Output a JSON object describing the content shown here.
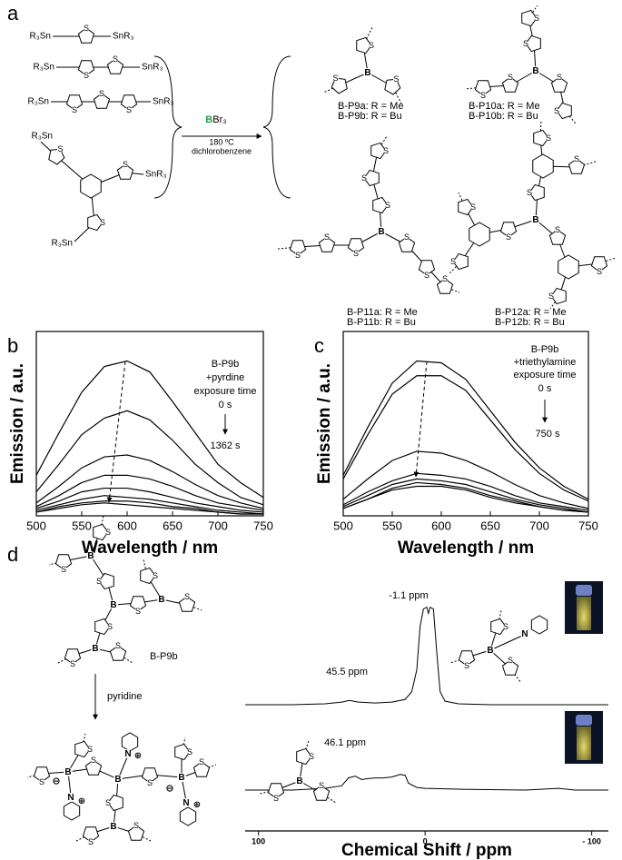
{
  "panel_labels": [
    "a",
    "b",
    "c",
    "d"
  ],
  "atoms": {
    "S": "S",
    "B": "B",
    "N": "N",
    "minus": "⊖",
    "plus": "⊕"
  },
  "scheme_a": {
    "reagent_labels": [
      "R₃Sn",
      "SnR₃",
      "R₃Sn",
      "SnR₃",
      "R₃Sn",
      "SnR₃",
      "R₃Sn",
      "SnR₃",
      "R₃Sn"
    ],
    "reagent": {
      "atom": "B",
      "rest": "Br₃"
    },
    "conditions": [
      "180 ºC",
      "dichlorobenzene"
    ],
    "products": [
      {
        "a": "B-P9a: R = Me",
        "b": "B-P9b: R = Bu"
      },
      {
        "a": "B-P10a: R = Me",
        "b": "B-P10b: R = Bu"
      },
      {
        "a": "B-P11a: R = Me",
        "b": "B-P11b: R = Bu"
      },
      {
        "a": "B-P12a: R = Me",
        "b": "B-P12b: R = Bu"
      }
    ]
  },
  "chart_data": [
    {
      "type": "line",
      "xlabel": "Wavelength / nm",
      "ylabel": "Emission / a.u.",
      "x": [
        500,
        525,
        550,
        575,
        600,
        625,
        650,
        675,
        700,
        725,
        750
      ],
      "xlim": [
        500,
        750
      ],
      "xticks": [
        500,
        550,
        600,
        650,
        700,
        750
      ],
      "ylim": [
        0,
        100
      ],
      "annotations": [
        "B-P9b",
        "+pyrdine",
        "exposure time",
        "0 s",
        "1362 s"
      ],
      "series": [
        {
          "color": "#000000",
          "values": [
            22,
            45,
            67,
            81,
            84,
            78,
            62,
            45,
            28,
            18,
            10
          ]
        },
        {
          "color": "#000000",
          "values": [
            13,
            28,
            44,
            53,
            57,
            52,
            41,
            28,
            18,
            10,
            6
          ]
        },
        {
          "color": "#000000",
          "values": [
            7,
            16,
            26,
            32,
            33,
            30,
            24,
            17,
            11,
            7,
            4
          ]
        },
        {
          "color": "#000000",
          "values": [
            5,
            11,
            18,
            22,
            22,
            20,
            16,
            11,
            7,
            5,
            3
          ]
        },
        {
          "color": "#000000",
          "values": [
            4,
            8,
            13,
            15,
            15,
            13,
            10,
            7,
            5,
            3,
            2
          ]
        },
        {
          "color": "#000000",
          "values": [
            3,
            6,
            9,
            11,
            10,
            9,
            7,
            5,
            3,
            2,
            1
          ]
        },
        {
          "color": "#000000",
          "values": [
            2,
            5,
            7,
            8,
            8,
            7,
            5,
            4,
            2,
            1,
            1
          ]
        },
        {
          "color": "#000000",
          "values": [
            2,
            4,
            6,
            7,
            6,
            5,
            4,
            3,
            2,
            1,
            1
          ]
        }
      ]
    },
    {
      "type": "line",
      "xlabel": "Wavelength / nm",
      "ylabel": "Emission / a.u.",
      "x": [
        500,
        525,
        550,
        575,
        600,
        625,
        650,
        675,
        700,
        725,
        750
      ],
      "xlim": [
        500,
        750
      ],
      "xticks": [
        500,
        550,
        600,
        650,
        700,
        750
      ],
      "ylim": [
        0,
        100
      ],
      "annotations": [
        "B-P9b",
        "+triethylamine",
        "exposure time",
        "0 s",
        "750 s"
      ],
      "series": [
        {
          "color": "#000000",
          "values": [
            22,
            48,
            72,
            84,
            83,
            74,
            57,
            40,
            26,
            16,
            9
          ]
        },
        {
          "color": "#000000",
          "values": [
            20,
            44,
            66,
            76,
            76,
            68,
            52,
            36,
            23,
            14,
            8
          ]
        },
        {
          "color": "#000000",
          "values": [
            9,
            20,
            30,
            35,
            34,
            30,
            24,
            17,
            11,
            7,
            4
          ]
        },
        {
          "color": "#000000",
          "values": [
            6,
            13,
            19,
            23,
            22,
            20,
            16,
            11,
            7,
            5,
            3
          ]
        },
        {
          "color": "#000000",
          "values": [
            5,
            11,
            17,
            20,
            19,
            17,
            13,
            9,
            6,
            4,
            2
          ]
        },
        {
          "color": "#000000",
          "values": [
            4,
            9,
            15,
            18,
            17,
            15,
            11,
            8,
            5,
            3,
            2
          ]
        },
        {
          "color": "#000000",
          "values": [
            4,
            9,
            14,
            16,
            16,
            14,
            10,
            7,
            5,
            3,
            2
          ]
        }
      ]
    },
    {
      "type": "nmr",
      "xlabel": "Chemical Shift / ppm",
      "xlim": [
        108,
        -110
      ],
      "xticks": [
        100,
        0,
        {
          "value": -100,
          "label": "- 100"
        }
      ],
      "ylim": [
        0,
        120
      ],
      "annotations": [
        "-1.1 ppm",
        "45.5 ppm",
        "46.1 ppm"
      ],
      "series": [
        {
          "color": "#000000",
          "x": [
            108,
            80,
            60,
            50,
            45.5,
            40,
            30,
            20,
            12,
            8,
            5,
            3,
            1,
            -1,
            -2,
            -3,
            -5,
            -7,
            -9,
            -12,
            -20,
            -40,
            -70,
            -110
          ],
          "values": [
            0,
            0,
            1,
            3,
            5,
            3,
            2,
            3,
            6,
            15,
            40,
            90,
            110,
            112,
            105,
            112,
            110,
            60,
            15,
            4,
            1,
            0,
            0,
            0
          ]
        },
        {
          "color": "#000000",
          "x": [
            108,
            80,
            60,
            50,
            46,
            42,
            38,
            35,
            30,
            25,
            20,
            15,
            12,
            10,
            5,
            0,
            -20,
            -60,
            -80,
            -90,
            -110
          ],
          "values": [
            0,
            0,
            2,
            5,
            14,
            16,
            12,
            13,
            14,
            14,
            15,
            18,
            17,
            8,
            3,
            2,
            1,
            0,
            2,
            0,
            0
          ]
        }
      ]
    }
  ],
  "scheme_d": {
    "compound": "B-P9b",
    "reagent": "pyridine"
  }
}
